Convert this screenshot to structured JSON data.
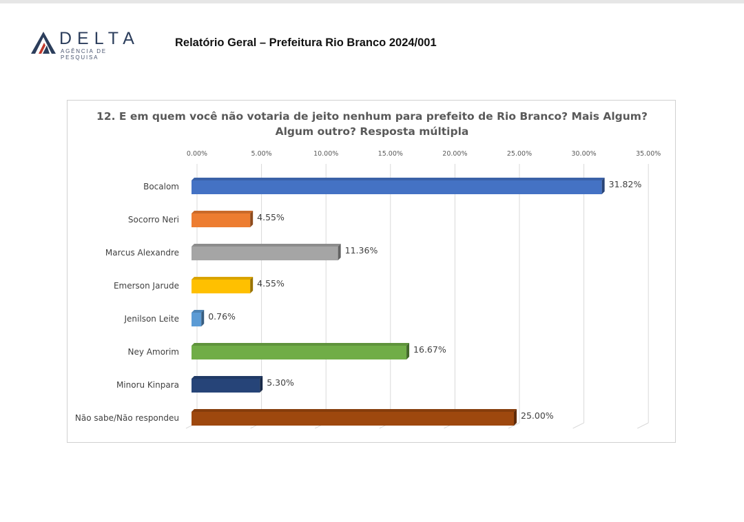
{
  "header": {
    "logo_word": "DELTA",
    "logo_tagline": "AGÊNCIA DE PESQUISA",
    "report_title": "Relatório Geral – Prefeitura Rio Branco 2024/001"
  },
  "chart_data": {
    "type": "bar",
    "orientation": "horizontal",
    "style": "3d",
    "title_line1": "12. E em quem você não votaria de jeito nenhum para prefeito de Rio Branco? Mais Algum?",
    "title_line2": "Algum outro? Resposta múltipla",
    "categories": [
      "Bocalom",
      "Socorro Neri",
      "Marcus Alexandre",
      "Emerson Jarude",
      "Jenilson Leite",
      "Ney Amorim",
      "Minoru Kinpara",
      "Não sabe/Não respondeu"
    ],
    "values": [
      31.82,
      4.55,
      11.36,
      4.55,
      0.76,
      16.67,
      5.3,
      25.0
    ],
    "value_labels": [
      "31.82%",
      "4.55%",
      "11.36%",
      "4.55%",
      "0.76%",
      "16.67%",
      "5.30%",
      "25.00%"
    ],
    "colors": [
      "#4472c4",
      "#ed7d31",
      "#a5a5a5",
      "#ffc000",
      "#5b9bd5",
      "#70ad47",
      "#264478",
      "#9e480e"
    ],
    "xlim": [
      0,
      35
    ],
    "ticks": [
      0,
      5,
      10,
      15,
      20,
      25,
      30,
      35
    ],
    "tick_labels": [
      "0.00%",
      "5.00%",
      "10.00%",
      "15.00%",
      "20.00%",
      "25.00%",
      "30.00%",
      "35.00%"
    ],
    "axis_position": "top",
    "grid": true
  }
}
